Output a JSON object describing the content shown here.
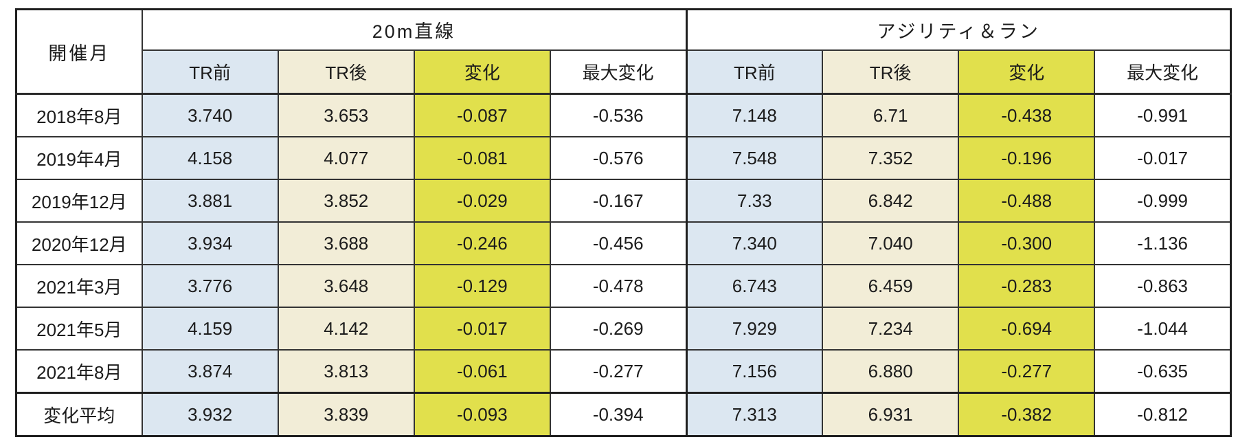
{
  "colors": {
    "pre_column_bg": "#dce7f1",
    "post_column_bg": "#f2edd7",
    "change_column_bg": "#e1e04c",
    "max_change_column_bg": "#ffffff",
    "border": "#1f1f1f",
    "text": "#1c1c1c"
  },
  "table": {
    "corner_header": "開催月",
    "groups": [
      {
        "label": "20m直線"
      },
      {
        "label": "アジリティ＆ラン"
      }
    ],
    "sub_headers": [
      "TR前",
      "TR後",
      "変化",
      "最大変化"
    ],
    "rows": [
      {
        "label": "2018年8月",
        "values": [
          "3.740",
          "3.653",
          "-0.087",
          "-0.536",
          "7.148",
          "6.71",
          "-0.438",
          "-0.991"
        ]
      },
      {
        "label": "2019年4月",
        "values": [
          "4.158",
          "4.077",
          "-0.081",
          "-0.576",
          "7.548",
          "7.352",
          "-0.196",
          "-0.017"
        ]
      },
      {
        "label": "2019年12月",
        "values": [
          "3.881",
          "3.852",
          "-0.029",
          "-0.167",
          "7.33",
          "6.842",
          "-0.488",
          "-0.999"
        ]
      },
      {
        "label": "2020年12月",
        "values": [
          "3.934",
          "3.688",
          "-0.246",
          "-0.456",
          "7.340",
          "7.040",
          "-0.300",
          "-1.136"
        ]
      },
      {
        "label": "2021年3月",
        "values": [
          "3.776",
          "3.648",
          "-0.129",
          "-0.478",
          "6.743",
          "6.459",
          "-0.283",
          "-0.863"
        ]
      },
      {
        "label": "2021年5月",
        "values": [
          "4.159",
          "4.142",
          "-0.017",
          "-0.269",
          "7.929",
          "7.234",
          "-0.694",
          "-1.044"
        ]
      },
      {
        "label": "2021年8月",
        "values": [
          "3.874",
          "3.813",
          "-0.061",
          "-0.277",
          "7.156",
          "6.880",
          "-0.277",
          "-0.635"
        ]
      },
      {
        "label": "変化平均",
        "values": [
          "3.932",
          "3.839",
          "-0.093",
          "-0.394",
          "7.313",
          "6.931",
          "-0.382",
          "-0.812"
        ],
        "is_summary": true
      }
    ]
  },
  "chart_data": {
    "type": "table",
    "title": "",
    "columns": [
      "開催月",
      "20m直線 TR前",
      "20m直線 TR後",
      "20m直線 変化",
      "20m直線 最大変化",
      "アジリティ＆ラン TR前",
      "アジリティ＆ラン TR後",
      "アジリティ＆ラン 変化",
      "アジリティ＆ラン 最大変化"
    ],
    "rows": [
      [
        "2018年8月",
        3.74,
        3.653,
        -0.087,
        -0.536,
        7.148,
        6.71,
        -0.438,
        -0.991
      ],
      [
        "2019年4月",
        4.158,
        4.077,
        -0.081,
        -0.576,
        7.548,
        7.352,
        -0.196,
        -0.017
      ],
      [
        "2019年12月",
        3.881,
        3.852,
        -0.029,
        -0.167,
        7.33,
        6.842,
        -0.488,
        -0.999
      ],
      [
        "2020年12月",
        3.934,
        3.688,
        -0.246,
        -0.456,
        7.34,
        7.04,
        -0.3,
        -1.136
      ],
      [
        "2021年3月",
        3.776,
        3.648,
        -0.129,
        -0.478,
        6.743,
        6.459,
        -0.283,
        -0.863
      ],
      [
        "2021年5月",
        4.159,
        4.142,
        -0.017,
        -0.269,
        7.929,
        7.234,
        -0.694,
        -1.044
      ],
      [
        "2021年8月",
        3.874,
        3.813,
        -0.061,
        -0.277,
        7.156,
        6.88,
        -0.277,
        -0.635
      ],
      [
        "変化平均",
        3.932,
        3.839,
        -0.093,
        -0.394,
        7.313,
        6.931,
        -0.382,
        -0.812
      ]
    ]
  }
}
